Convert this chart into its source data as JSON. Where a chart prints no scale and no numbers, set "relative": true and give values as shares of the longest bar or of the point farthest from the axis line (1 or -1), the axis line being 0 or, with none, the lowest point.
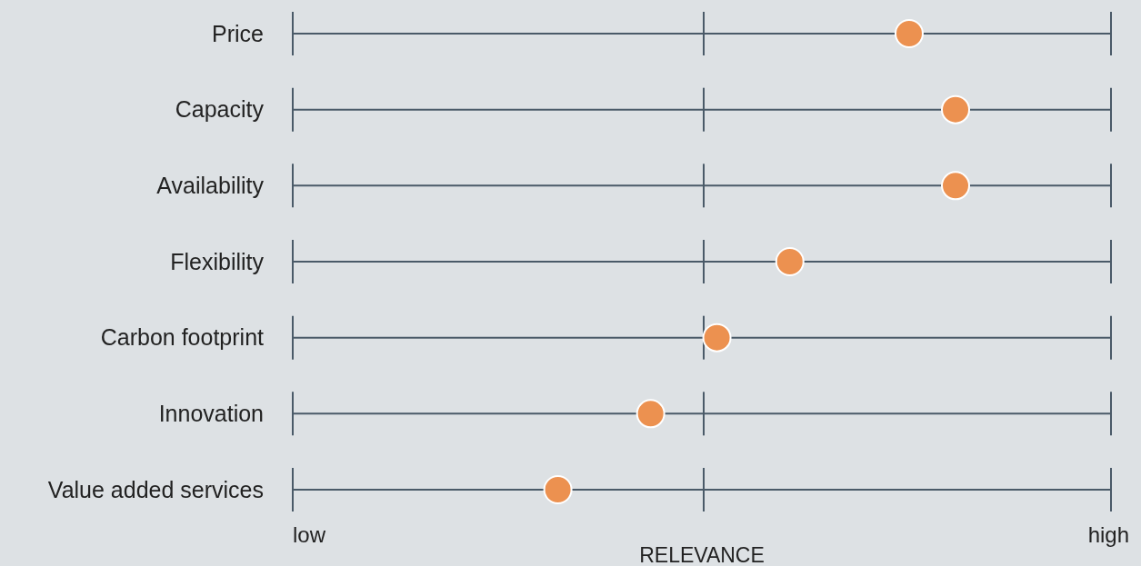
{
  "chart_data": {
    "type": "scatter",
    "orientation": "horizontal",
    "relative": true,
    "xlabel": "RELEVANCE",
    "categories": [
      "Price",
      "Capacity",
      "Availability",
      "Flexibility",
      "Carbon footprint",
      "Innovation",
      "Value added services"
    ],
    "values": [
      0.93,
      1,
      1,
      0.75,
      0.64,
      0.54,
      0.4
    ],
    "color": "#ec9150",
    "marker": "circle",
    "grid": "y",
    "annotations": [
      "low",
      "high"
    ],
    "ref_lines": [
      {
        "axis": "x",
        "value": 0.62,
        "color": "#4a5a68"
      }
    ]
  }
}
